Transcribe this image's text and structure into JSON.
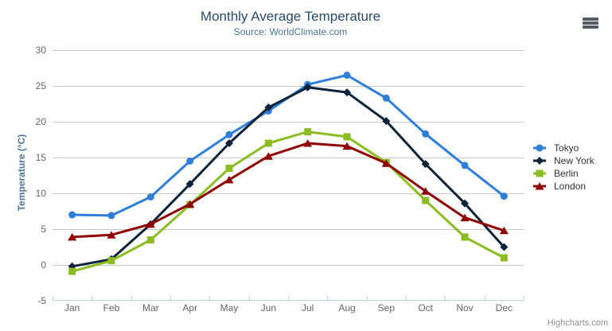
{
  "chart_data": {
    "type": "line",
    "title": "Monthly Average Temperature",
    "subtitle": "Source: WorldClimate.com",
    "categories": [
      "Jan",
      "Feb",
      "Mar",
      "Apr",
      "May",
      "Jun",
      "Jul",
      "Aug",
      "Sep",
      "Oct",
      "Nov",
      "Dec"
    ],
    "xlabel": "",
    "ylabel": "Temperature (°C)",
    "ylim": [
      -5,
      30
    ],
    "yticks": [
      -5,
      0,
      5,
      10,
      15,
      20,
      25,
      30
    ],
    "grid": true,
    "legend_position": "right",
    "series": [
      {
        "name": "Tokyo",
        "color": "#2f7ed8",
        "marker": "circle",
        "values": [
          7.0,
          6.9,
          9.5,
          14.5,
          18.2,
          21.5,
          25.2,
          26.5,
          23.3,
          18.3,
          13.9,
          9.6
        ]
      },
      {
        "name": "New York",
        "color": "#0d233a",
        "marker": "diamond",
        "values": [
          -0.2,
          0.8,
          5.7,
          11.3,
          17.0,
          22.0,
          24.8,
          24.1,
          20.1,
          14.1,
          8.6,
          2.5
        ]
      },
      {
        "name": "Berlin",
        "color": "#8bbc21",
        "marker": "square",
        "values": [
          -0.9,
          0.6,
          3.5,
          8.4,
          13.5,
          17.0,
          18.6,
          17.9,
          14.3,
          9.0,
          3.9,
          1.0
        ]
      },
      {
        "name": "London",
        "color": "#910000",
        "marker": "triangle",
        "values": [
          3.9,
          4.2,
          5.7,
          8.5,
          11.9,
          15.2,
          17.0,
          16.6,
          14.2,
          10.3,
          6.6,
          4.8
        ]
      }
    ]
  },
  "export_menu": {
    "icon": "hamburger-icon"
  },
  "credits": {
    "label": "Highcharts.com"
  },
  "colors": {
    "title": "#274b6d",
    "subtitle": "#4d759e",
    "axis_title": "#4d759e",
    "axis_labels": "#666666",
    "gridline": "#c8c8c8",
    "axis_line": "#c0d0e0",
    "credits": "#8f8f8f"
  }
}
